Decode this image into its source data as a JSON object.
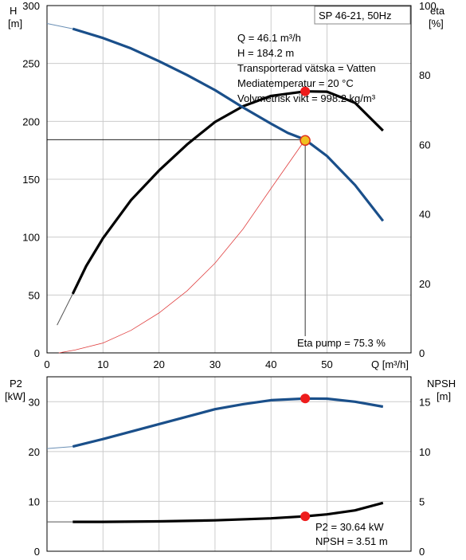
{
  "chart_data": [
    {
      "type": "line",
      "title": "SP 46-21, 50Hz",
      "xlabel": "Q [m³/h]",
      "ylabel_left": [
        "H",
        "[m]"
      ],
      "ylabel_right": [
        "eta",
        "[%]"
      ],
      "xlim": [
        0,
        65
      ],
      "ylim_left": [
        0,
        300
      ],
      "ylim_right": [
        0,
        100
      ],
      "x_ticks": [
        0,
        10,
        20,
        30,
        40,
        50
      ],
      "y_ticks_left": [
        0,
        50,
        100,
        150,
        200,
        250,
        300
      ],
      "y_ticks_right": [
        0,
        20,
        40,
        60,
        80,
        100
      ],
      "grid": true,
      "annotations": [
        "Q = 46.1 m³/h",
        "H = 184.2 m",
        "Transporterad vätska = Vatten",
        "Mediatemperatur = 20 °C",
        "Volymetrisk vikt = 998.2 kg/m³"
      ],
      "eta_label": "Eta pump = 75.3 %",
      "operating_point": {
        "q": 46.1,
        "h": 184.2,
        "eta": 75.3
      },
      "series": [
        {
          "color": "#1a4f8a",
          "axis": "left",
          "x": [
            0,
            4.6,
            10,
            15,
            20,
            25,
            30,
            35,
            40,
            43,
            46.1,
            50,
            55,
            60
          ],
          "y": [
            284.5,
            280,
            272,
            263,
            252,
            240,
            227,
            212,
            198,
            190,
            184.2,
            170,
            145,
            114
          ]
        },
        {
          "color": "#000000",
          "axis": "right",
          "x": [
            4.6,
            7,
            10,
            15,
            20,
            25,
            30,
            35,
            40,
            46.1,
            50,
            55,
            60
          ],
          "y": [
            17,
            25,
            33,
            44,
            52.5,
            60,
            66.5,
            71,
            74,
            75.3,
            75.2,
            72,
            64
          ]
        },
        {
          "color": "#e04040",
          "axis": "left",
          "x": [
            2.1,
            5,
            10,
            15,
            20,
            25,
            30,
            35,
            40,
            46.1
          ],
          "y": [
            0,
            2.5,
            8.5,
            19.5,
            34.5,
            53.5,
            77.5,
            107,
            142,
            184.2
          ]
        }
      ]
    },
    {
      "type": "line",
      "xlabel": "",
      "ylabel_left": [
        "P2",
        "[kW]"
      ],
      "ylabel_right": [
        "NPSH",
        "[m]"
      ],
      "xlim": [
        0,
        65
      ],
      "ylim_left": [
        0,
        35
      ],
      "ylim_right": [
        0,
        17.5
      ],
      "x_ticks": [
        0,
        10,
        20,
        30,
        40,
        50
      ],
      "y_ticks_left": [
        0,
        10,
        20,
        30
      ],
      "y_ticks_right": [
        0,
        5,
        10,
        15
      ],
      "grid": true,
      "annotations": [
        "P2 = 30.64 kW",
        "NPSH = 3.51 m"
      ],
      "operating_point": {
        "q": 46.1,
        "p2": 30.64,
        "npsh": 3.51
      },
      "series": [
        {
          "color": "#1a4f8a",
          "axis": "left",
          "x": [
            0,
            4.6,
            10,
            15,
            20,
            25,
            30,
            35,
            40,
            46.1,
            50,
            55,
            60
          ],
          "y": [
            20.6,
            21,
            22.5,
            24,
            25.5,
            27,
            28.5,
            29.5,
            30.3,
            30.64,
            30.6,
            30,
            29
          ]
        },
        {
          "color": "#000000",
          "axis": "right",
          "x": [
            0,
            4.6,
            10,
            20,
            30,
            40,
            46.1,
            50,
            55,
            60
          ],
          "y": [
            2.95,
            2.95,
            2.95,
            3.0,
            3.1,
            3.3,
            3.51,
            3.7,
            4.1,
            4.85
          ]
        }
      ]
    }
  ]
}
